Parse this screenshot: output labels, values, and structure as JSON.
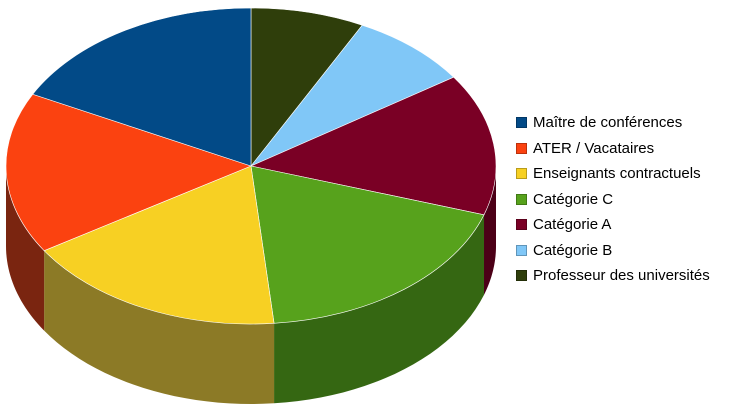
{
  "chart_data": {
    "type": "pie",
    "three_d": true,
    "legend_placement": "right",
    "start_angle_deg": 90,
    "direction": "clockwise",
    "slices": [
      {
        "label": "Professeur des universités",
        "value": 7.5,
        "color": "#2f3e0b",
        "side_color": "#1d270a"
      },
      {
        "label": "Catégorie B",
        "value": 8.0,
        "color": "#80c7f7",
        "side_color": "#5a8fb4"
      },
      {
        "label": "Catégorie A",
        "value": 14.5,
        "color": "#7a0025",
        "side_color": "#4c0017"
      },
      {
        "label": "Catégorie C",
        "value": 18.5,
        "color": "#57a21c",
        "side_color": "#356712"
      },
      {
        "label": "Enseignants contractuels",
        "value": 17.5,
        "color": "#f7d023",
        "side_color": "#8c7a26"
      },
      {
        "label": "ATER / Vacataires",
        "value": 16.5,
        "color": "#fb4210",
        "side_color": "#7a2510"
      },
      {
        "label": "Maître de conférences",
        "value": 17.5,
        "color": "#024a87",
        "side_color": "#012d52"
      }
    ],
    "legend_order": [
      "Maître de conférences",
      "ATER / Vacataires",
      "Enseignants contractuels",
      "Catégorie C",
      "Catégorie A",
      "Catégorie B",
      "Professeur des universités"
    ]
  }
}
